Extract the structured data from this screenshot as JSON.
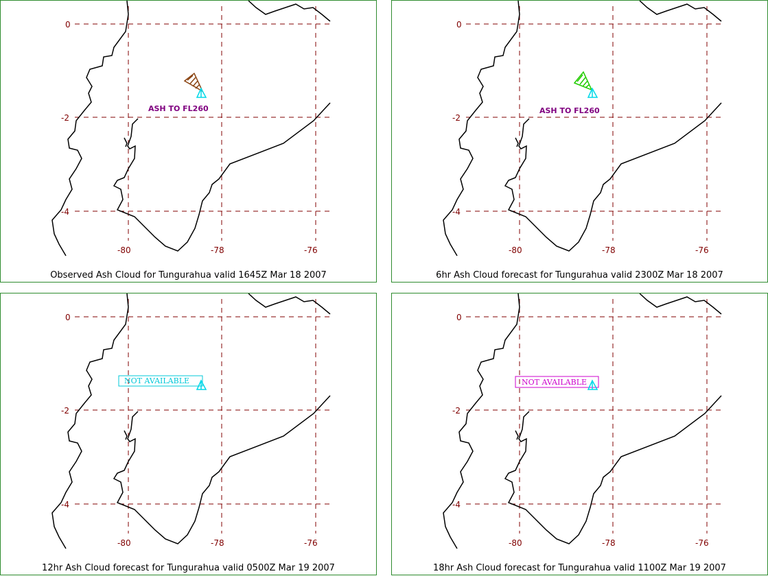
{
  "grid": {
    "lon_labels": [
      "-80",
      "-78",
      "-76"
    ],
    "lat_labels": [
      "0",
      "-2",
      "-4"
    ]
  },
  "colors": {
    "grid": "#800000",
    "border": "#2e8b2e",
    "volcano": "#00d8e8",
    "label_purple": "#800080",
    "ash_brown": "#8b4513",
    "ash_green": "#22cc00",
    "na_cyan": "#00c8d8",
    "na_magenta": "#cc00cc"
  },
  "panels": [
    {
      "caption": "Observed Ash Cloud for Tungurahua valid 1645Z Mar 18 2007",
      "annotation_type": "ash",
      "annotation_text": "ASH TO FL260",
      "ash_color": "brown",
      "volcano_icon": "volcano-triangle-icon"
    },
    {
      "caption": "6hr Ash Cloud forecast for Tungurahua valid 2300Z Mar 18 2007",
      "annotation_type": "ash",
      "annotation_text": "ASH TO FL260",
      "ash_color": "green",
      "volcano_icon": "volcano-triangle-icon"
    },
    {
      "caption": "12hr Ash Cloud forecast for Tungurahua valid 0500Z Mar 19 2007",
      "annotation_type": "na",
      "annotation_text": "NOT AVAILABLE",
      "na_color": "cyan",
      "volcano_icon": "volcano-triangle-icon"
    },
    {
      "caption": "18hr Ash Cloud forecast for Tungurahua valid 1100Z Mar 19 2007",
      "annotation_type": "na",
      "annotation_text": "NOT AVAILABLE",
      "na_color": "magenta",
      "volcano_icon": "volcano-triangle-icon"
    }
  ]
}
